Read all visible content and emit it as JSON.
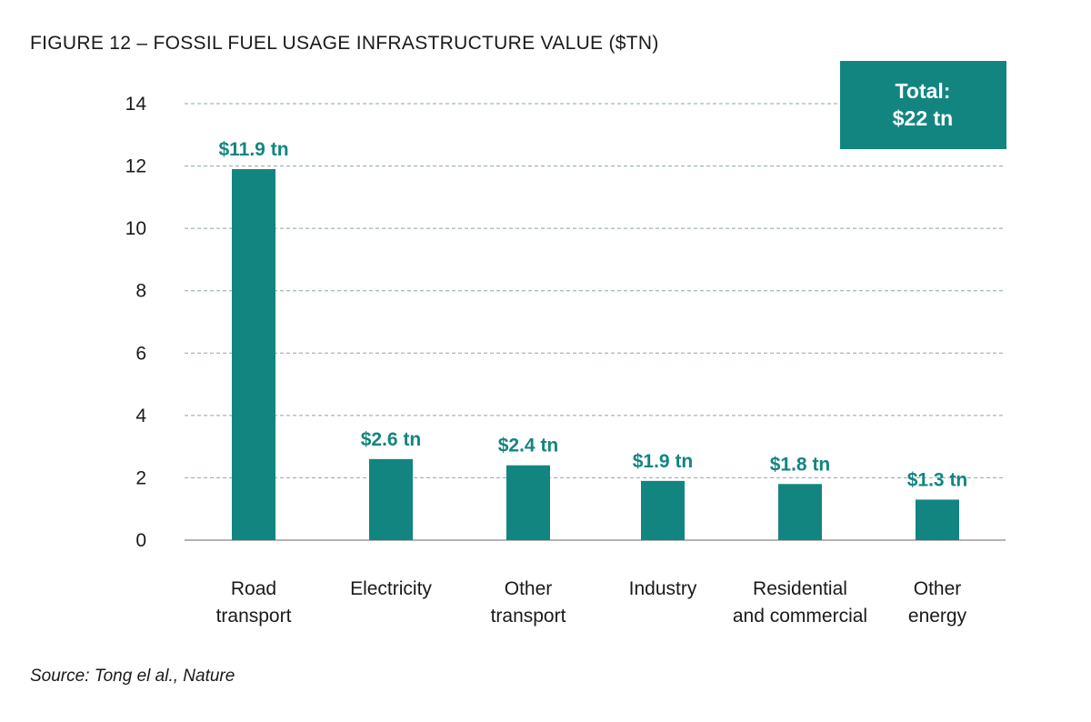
{
  "figure_title": "FIGURE 12 – FOSSIL FUEL USAGE INFRASTRUCTURE VALUE ($TN)",
  "source": "Source: Tong el al., Nature",
  "colors": {
    "bar": "#138580",
    "label": "#138580",
    "total_box": "#138580",
    "grid": "#8aa8a2"
  },
  "chart_data": {
    "type": "bar",
    "title": "FIGURE 12 – FOSSIL FUEL USAGE INFRASTRUCTURE VALUE ($TN)",
    "xlabel": "",
    "ylabel": "",
    "ylim": [
      0,
      14
    ],
    "yticks": [
      0,
      2,
      4,
      6,
      8,
      10,
      12,
      14
    ],
    "grid": true,
    "categories": [
      [
        "Road",
        "transport"
      ],
      [
        "Electricity"
      ],
      [
        "Other",
        "transport"
      ],
      [
        "Industry"
      ],
      [
        "Residential",
        "and commercial"
      ],
      [
        "Other",
        "energy"
      ]
    ],
    "values": [
      11.9,
      2.6,
      2.4,
      1.9,
      1.8,
      1.3
    ],
    "data_labels": [
      "$11.9 tn",
      "$2.6 tn",
      "$2.4 tn",
      "$1.9 tn",
      "$1.8 tn",
      "$1.3 tn"
    ],
    "annotation": {
      "position": "top-right",
      "lines": [
        "Total:",
        "$22 tn"
      ]
    }
  }
}
